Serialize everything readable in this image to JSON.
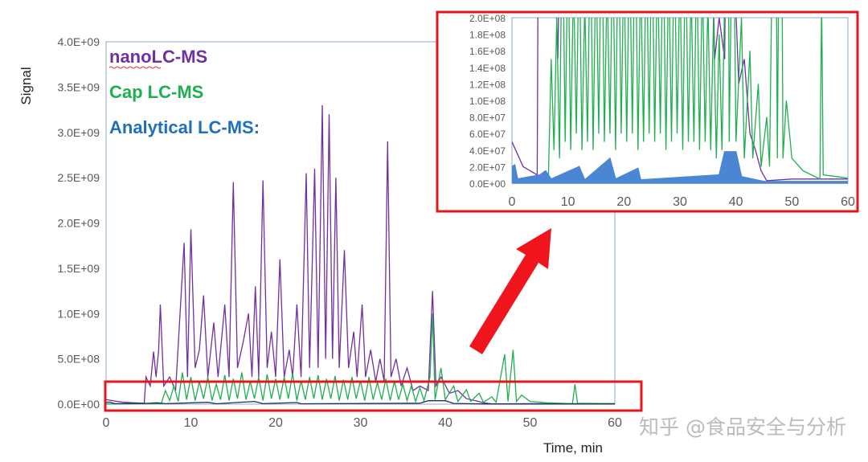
{
  "chart_data": [
    {
      "type": "line",
      "xlabel": "Time, min",
      "ylabel": "Signal",
      "xlim": [
        0,
        60
      ],
      "ylim": [
        0,
        4000000000
      ],
      "x_ticks": [
        "0",
        "10",
        "20",
        "30",
        "40",
        "50",
        "60"
      ],
      "y_ticks": [
        "0.0E+00",
        "5.0E+08",
        "1.0E+09",
        "1.5E+09",
        "2.0E+09",
        "2.5E+09",
        "3.0E+09",
        "3.5E+09",
        "4.0E+09"
      ],
      "grid": false,
      "legend": [
        {
          "label": "nanoLC-MS",
          "color": "#7030a0"
        },
        {
          "label": "Cap LC-MS",
          "color": "#1fae50"
        },
        {
          "label": "Analytical LC-MS:",
          "color": "#1f6fbf"
        }
      ],
      "legend_placement": "top-left",
      "series": [
        {
          "name": "nanoLC-MS",
          "color": "#7030a0",
          "points": [
            [
              0,
              50000000.0
            ],
            [
              2,
              20000000.0
            ],
            [
              4.5,
              10000000.0
            ],
            [
              4.7,
              300000000.0
            ],
            [
              5.2,
              200000000.0
            ],
            [
              5.6,
              580000000.0
            ],
            [
              5.9,
              300000000.0
            ],
            [
              6.2,
              600000000.0
            ],
            [
              6.4,
              1100000000.0
            ],
            [
              6.8,
              200000000.0
            ],
            [
              7.5,
              300000000.0
            ],
            [
              8.2,
              150000000.0
            ],
            [
              9.2,
              1780000000.0
            ],
            [
              9.6,
              300000000.0
            ],
            [
              10,
              1930000000.0
            ],
            [
              10.5,
              400000000.0
            ],
            [
              11,
              600000000.0
            ],
            [
              11.5,
              1200000000.0
            ],
            [
              12,
              300000000.0
            ],
            [
              12.7,
              900000000.0
            ],
            [
              13.2,
              300000000.0
            ],
            [
              14,
              1100000000.0
            ],
            [
              14.5,
              300000000.0
            ],
            [
              15,
              2450000000.0
            ],
            [
              15.5,
              400000000.0
            ],
            [
              16.2,
              700000000.0
            ],
            [
              16.8,
              1000000000.0
            ],
            [
              17.2,
              300000000.0
            ],
            [
              17.6,
              1300000000.0
            ],
            [
              18,
              300000000.0
            ],
            [
              18.5,
              2470000000.0
            ],
            [
              19,
              400000000.0
            ],
            [
              19.5,
              800000000.0
            ],
            [
              20,
              300000000.0
            ],
            [
              20.5,
              1600000000.0
            ],
            [
              21,
              300000000.0
            ],
            [
              21.6,
              600000000.0
            ],
            [
              22,
              300000000.0
            ],
            [
              22.5,
              1100000000.0
            ],
            [
              23,
              300000000.0
            ],
            [
              23.6,
              2550000000.0
            ],
            [
              24,
              400000000.0
            ],
            [
              24.6,
              2600000000.0
            ],
            [
              25,
              400000000.0
            ],
            [
              25.5,
              3300000000.0
            ],
            [
              25.9,
              500000000.0
            ],
            [
              26.3,
              3200000000.0
            ],
            [
              26.7,
              500000000.0
            ],
            [
              27.1,
              2500000000.0
            ],
            [
              27.5,
              400000000.0
            ],
            [
              28.1,
              1700000000.0
            ],
            [
              28.6,
              400000000.0
            ],
            [
              29.2,
              800000000.0
            ],
            [
              29.6,
              300000000.0
            ],
            [
              30.2,
              1100000000.0
            ],
            [
              30.6,
              300000000.0
            ],
            [
              31.2,
              600000000.0
            ],
            [
              31.8,
              250000000.0
            ],
            [
              32.3,
              500000000.0
            ],
            [
              32.8,
              250000000.0
            ],
            [
              33.2,
              2900000000.0
            ],
            [
              33.6,
              300000000.0
            ],
            [
              34.2,
              500000000.0
            ],
            [
              34.8,
              200000000.0
            ],
            [
              35.5,
              400000000.0
            ],
            [
              36.2,
              150000000.0
            ],
            [
              37,
              200000000.0
            ],
            [
              38,
              150000000.0
            ],
            [
              38.5,
              1250000000.0
            ],
            [
              38.9,
              200000000.0
            ],
            [
              39.5,
              300000000.0
            ],
            [
              40.5,
              120000000.0
            ],
            [
              41.5,
              150000000.0
            ],
            [
              42.5,
              60000000.0
            ],
            [
              43.5,
              40000000.0
            ],
            [
              44.5,
              15000000.0
            ],
            [
              45.5,
              3000000.0
            ],
            [
              50,
              5000000.0
            ],
            [
              60,
              5000000.0
            ]
          ]
        },
        {
          "name": "Cap LC-MS",
          "color": "#1fae50",
          "points": [
            [
              0,
              2000000.0
            ],
            [
              6.5,
              5000000.0
            ],
            [
              7,
              150000000.0
            ],
            [
              7.5,
              40000000.0
            ],
            [
              8,
              200000000.0
            ],
            [
              8.5,
              30000000.0
            ],
            [
              9,
              350000000.0
            ],
            [
              9.5,
              50000000.0
            ],
            [
              10,
              300000000.0
            ],
            [
              10.5,
              40000000.0
            ],
            [
              11,
              250000000.0
            ],
            [
              11.5,
              60000000.0
            ],
            [
              12,
              300000000.0
            ],
            [
              12.5,
              40000000.0
            ],
            [
              13,
              220000000.0
            ],
            [
              13.5,
              50000000.0
            ],
            [
              14,
              320000000.0
            ],
            [
              14.5,
              40000000.0
            ],
            [
              15,
              280000000.0
            ],
            [
              15.5,
              60000000.0
            ],
            [
              16,
              350000000.0
            ],
            [
              16.5,
              50000000.0
            ],
            [
              17,
              250000000.0
            ],
            [
              17.5,
              60000000.0
            ],
            [
              18,
              300000000.0
            ],
            [
              18.5,
              40000000.0
            ],
            [
              19,
              330000000.0
            ],
            [
              19.5,
              60000000.0
            ],
            [
              20,
              280000000.0
            ],
            [
              20.5,
              50000000.0
            ],
            [
              21,
              300000000.0
            ],
            [
              21.5,
              60000000.0
            ],
            [
              22,
              340000000.0
            ],
            [
              22.5,
              40000000.0
            ],
            [
              23,
              260000000.0
            ],
            [
              23.5,
              50000000.0
            ],
            [
              24,
              300000000.0
            ],
            [
              24.5,
              60000000.0
            ],
            [
              25,
              320000000.0
            ],
            [
              25.5,
              50000000.0
            ],
            [
              26,
              280000000.0
            ],
            [
              26.5,
              60000000.0
            ],
            [
              27,
              310000000.0
            ],
            [
              27.5,
              40000000.0
            ],
            [
              28,
              270000000.0
            ],
            [
              28.5,
              50000000.0
            ],
            [
              29,
              300000000.0
            ],
            [
              29.5,
              60000000.0
            ],
            [
              30,
              260000000.0
            ],
            [
              30.5,
              40000000.0
            ],
            [
              31,
              300000000.0
            ],
            [
              31.5,
              50000000.0
            ],
            [
              32,
              240000000.0
            ],
            [
              32.5,
              50000000.0
            ],
            [
              33,
              280000000.0
            ],
            [
              33.5,
              40000000.0
            ],
            [
              34,
              250000000.0
            ],
            [
              34.5,
              50000000.0
            ],
            [
              35,
              220000000.0
            ],
            [
              35.5,
              40000000.0
            ],
            [
              36,
              200000000.0
            ],
            [
              36.5,
              30000000.0
            ],
            [
              37,
              180000000.0
            ],
            [
              37.5,
              40000000.0
            ],
            [
              38.2,
              300000000.0
            ],
            [
              38.5,
              1000000000.0
            ],
            [
              38.8,
              50000000.0
            ],
            [
              39.5,
              400000000.0
            ],
            [
              40,
              50000000.0
            ],
            [
              41,
              200000000.0
            ],
            [
              41.5,
              30000000.0
            ],
            [
              42.5,
              160000000.0
            ],
            [
              43,
              30000000.0
            ],
            [
              44,
              120000000.0
            ],
            [
              44.5,
              20000000.0
            ],
            [
              45.5,
              80000000.0
            ],
            [
              46,
              20000000.0
            ],
            [
              47,
              550000000.0
            ],
            [
              47.4,
              30000000.0
            ],
            [
              48,
              600000000.0
            ],
            [
              48.4,
              30000000.0
            ],
            [
              49,
              100000000.0
            ],
            [
              50,
              30000000.0
            ],
            [
              52,
              15000000.0
            ],
            [
              55,
              5000000.0
            ],
            [
              55.3,
              220000000.0
            ],
            [
              55.6,
              10000000.0
            ],
            [
              58,
              8000000.0
            ],
            [
              60,
              6000000.0
            ]
          ]
        },
        {
          "name": "Analytical LC-MS:",
          "color": "#4a86d4",
          "points": [
            [
              0,
              20000000.0
            ],
            [
              0.5,
              22000000.0
            ],
            [
              1,
              5000000.0
            ],
            [
              5,
              10000000.0
            ],
            [
              6,
              15000000.0
            ],
            [
              7,
              5000000.0
            ],
            [
              12,
              20000000.0
            ],
            [
              13,
              4000000.0
            ],
            [
              17.5,
              30000000.0
            ],
            [
              18.5,
              5000000.0
            ],
            [
              22.5,
              18000000.0
            ],
            [
              23,
              4000000.0
            ],
            [
              37,
              10000000.0
            ],
            [
              38,
              38000000.0
            ],
            [
              40,
              38000000.0
            ],
            [
              41,
              8000000.0
            ],
            [
              45,
              2000000.0
            ],
            [
              60,
              2000000.0
            ]
          ]
        }
      ]
    },
    {
      "type": "line",
      "inset_of": "main chart, zoom on low-signal region",
      "xlim": [
        0,
        60
      ],
      "ylim": [
        0,
        200000000
      ],
      "x_ticks": [
        "0",
        "10",
        "20",
        "30",
        "40",
        "50",
        "60"
      ],
      "y_ticks": [
        "0.0E+00",
        "2.0E+07",
        "4.0E+07",
        "6.0E+07",
        "8.0E+07",
        "1.0E+08",
        "1.2E+08",
        "1.4E+08",
        "1.6E+08",
        "1.8E+08",
        "2.0E+08"
      ],
      "grid": false,
      "highlight_color": "#e8141c"
    }
  ],
  "watermark": "知乎 @食品安全与分析"
}
